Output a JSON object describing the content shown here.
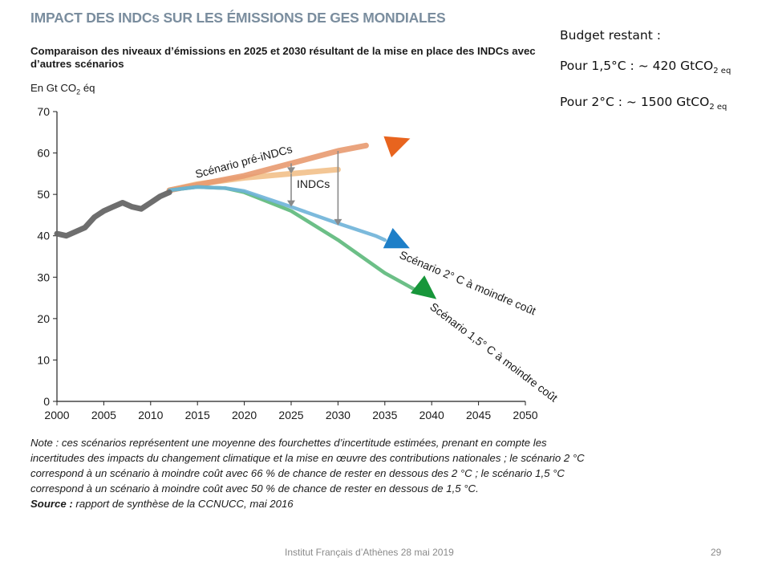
{
  "slide": {
    "title": "IMPACT DES INDCs SUR LES ÉMISSIONS DE GES MONDIALES",
    "subtitle": "Comparaison des niveaux d’émissions en 2025 et 2030 résultant de la mise en place des INDCs avec d’autres scénarios",
    "unit_prefix": "En Gt CO",
    "unit_sub": "2",
    "unit_suffix": " éq",
    "budget": {
      "heading": "Budget restant :",
      "line1_text": "Pour 1,5°C : ~ 420 GtCO",
      "line1_sub": "2 eq",
      "line2_text": "Pour 2°C : ~  1500 GtCO",
      "line2_sub": "2 eq"
    },
    "note": {
      "text": "Note : ces scénarios représentent une moyenne des fourchettes d’incertitude estimées, prenant en compte les incertitudes des impacts du changement climatique et la mise en œuvre des contributions nationales ; le scénario 2 °C correspond à un scénario à moindre coût avec 66 % de chance de rester en dessous des 2 °C ; le scénario 1,5 °C correspond à un scénario à moindre coût avec 50 % de chance de rester en dessous de 1,5 °C.",
      "source_label": "Source :",
      "source_text": " rapport de synthèse de la CCNUCC, mai 2016"
    },
    "footer": "Institut Français d’Athènes 28 mai 2019",
    "page_number": "29"
  },
  "chart_data": {
    "type": "line",
    "ylabel": "En Gt CO2 éq",
    "xlim": [
      2000,
      2050
    ],
    "ylim": [
      0,
      70
    ],
    "x_ticks": [
      2000,
      2005,
      2010,
      2015,
      2020,
      2025,
      2030,
      2035,
      2040,
      2045,
      2050
    ],
    "y_ticks": [
      0,
      10,
      20,
      30,
      40,
      50,
      60,
      70
    ],
    "series": [
      {
        "key": "historical",
        "name": "",
        "color": "#666666",
        "points": [
          [
            2000,
            40.5
          ],
          [
            2001,
            40
          ],
          [
            2002,
            41
          ],
          [
            2003,
            42
          ],
          [
            2004,
            44.5
          ],
          [
            2005,
            46
          ],
          [
            2006,
            47
          ],
          [
            2007,
            48
          ],
          [
            2008,
            47
          ],
          [
            2009,
            46.5
          ],
          [
            2010,
            48
          ],
          [
            2011,
            49.5
          ],
          [
            2012,
            50.5
          ]
        ]
      },
      {
        "key": "pre_indcs",
        "name": "Scénario pré-iNDCs",
        "color": "#e89a70",
        "points": [
          [
            2012,
            51
          ],
          [
            2020,
            54.5
          ],
          [
            2025,
            57.5
          ],
          [
            2030,
            60.5
          ],
          [
            2033,
            61.8
          ]
        ]
      },
      {
        "key": "indcs",
        "name": "INDCs",
        "color": "#f2c08a",
        "points": [
          [
            2012,
            51
          ],
          [
            2015,
            52.5
          ],
          [
            2020,
            54
          ],
          [
            2025,
            55
          ],
          [
            2030,
            56
          ]
        ]
      },
      {
        "key": "two_degrees",
        "name": "Scénario 2° C à moindre coût",
        "color": "#6eb3d8",
        "points": [
          [
            2012,
            51
          ],
          [
            2015,
            51.8
          ],
          [
            2018,
            51.5
          ],
          [
            2020,
            50.8
          ],
          [
            2025,
            47
          ],
          [
            2030,
            43
          ],
          [
            2034,
            40
          ],
          [
            2035,
            39
          ]
        ]
      },
      {
        "key": "one_five_degrees",
        "name": "Scénario 1,5° C à moindre coût",
        "color": "#5cb87a",
        "points": [
          [
            2012,
            51
          ],
          [
            2015,
            51.8
          ],
          [
            2018,
            51.5
          ],
          [
            2020,
            50.5
          ],
          [
            2025,
            46
          ],
          [
            2030,
            39
          ],
          [
            2035,
            31
          ],
          [
            2039,
            26
          ]
        ]
      }
    ],
    "arrow_heads": [
      {
        "x": 2036.5,
        "y": 62.5,
        "color": "#e8641e"
      },
      {
        "x": 2036.5,
        "y": 38.2,
        "color": "#1e7fc8"
      },
      {
        "x": 2039.5,
        "y": 26.5,
        "color": "#17963a"
      }
    ],
    "gap_markers": [
      {
        "x": 2025,
        "from": 57.5,
        "to": 55
      },
      {
        "x": 2025,
        "from": 55,
        "to": 47
      },
      {
        "x": 2030,
        "from": 60.5,
        "to": 42.5
      }
    ],
    "annotations": {
      "pre_indcs": "Scénario pré-iNDCs",
      "indcs": "INDCs",
      "two_degrees": "Scénario 2° C à moindre coût",
      "one_five_degrees": "Scénario 1,5° C à moindre coût"
    },
    "grid": false
  }
}
